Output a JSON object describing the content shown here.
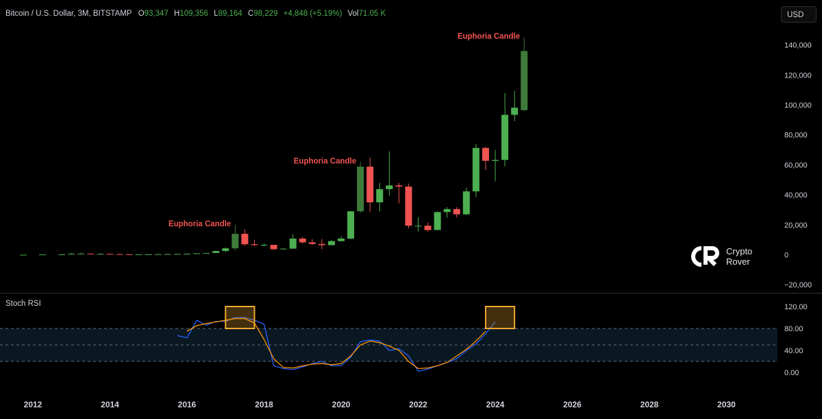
{
  "header": {
    "title": "Bitcoin / U.S. Dollar, 3M, BITSTAMP",
    "open_key": "O",
    "open_val": "93,347",
    "high_key": "H",
    "high_val": "109,356",
    "low_key": "L",
    "low_val": "89,164",
    "close_key": "C",
    "close_val": "98,229",
    "change": "+4,848 (+5.19%)",
    "vol_key": "Vol",
    "vol_val": "71.05 K"
  },
  "currency_button": "USD",
  "logo": {
    "line1": "Crypto",
    "line2": "Rover"
  },
  "colors": {
    "up": "#4caf50",
    "down": "#f05350",
    "euphoria": "#3e7a3a",
    "rsi_k": "#2962ff",
    "rsi_d": "#ff9800",
    "highlight": "#f0a830"
  },
  "chart_data": [
    {
      "type": "candlestick",
      "title": "Bitcoin / U.S. Dollar, 3M, BITSTAMP",
      "ylim": [
        -20000,
        145000
      ],
      "yticks": [
        -20000,
        0,
        20000,
        40000,
        60000,
        80000,
        100000,
        120000,
        140000
      ],
      "ytick_labels": [
        "−20,000",
        "0",
        "20,000",
        "40,000",
        "60,000",
        "80,000",
        "100,000",
        "120,000",
        "140,000"
      ],
      "x_ticks": [
        "2012",
        "2014",
        "2016",
        "2018",
        "2020",
        "2022",
        "2024",
        "2026",
        "2028",
        "2030"
      ],
      "candles": [
        {
          "t": 2011.75,
          "o": 0,
          "h": 10,
          "l": 0,
          "c": 10
        },
        {
          "t": 2012.25,
          "o": 100,
          "h": 250,
          "l": 50,
          "c": 200
        },
        {
          "t": 2012.75,
          "o": 200,
          "h": 400,
          "l": 150,
          "c": 300
        },
        {
          "t": 2013.0,
          "o": 300,
          "h": 1100,
          "l": 250,
          "c": 700
        },
        {
          "t": 2013.25,
          "o": 700,
          "h": 1200,
          "l": 500,
          "c": 800
        },
        {
          "t": 2013.5,
          "o": 800,
          "h": 900,
          "l": 400,
          "c": 500
        },
        {
          "t": 2013.75,
          "o": 500,
          "h": 1000,
          "l": 300,
          "c": 600
        },
        {
          "t": 2014.0,
          "o": 600,
          "h": 700,
          "l": 300,
          "c": 400
        },
        {
          "t": 2014.25,
          "o": 400,
          "h": 500,
          "l": 200,
          "c": 300
        },
        {
          "t": 2014.5,
          "o": 300,
          "h": 400,
          "l": 200,
          "c": 250
        },
        {
          "t": 2014.75,
          "o": 250,
          "h": 350,
          "l": 200,
          "c": 300
        },
        {
          "t": 2015.0,
          "o": 300,
          "h": 400,
          "l": 250,
          "c": 350
        },
        {
          "t": 2015.25,
          "o": 350,
          "h": 450,
          "l": 300,
          "c": 400
        },
        {
          "t": 2015.5,
          "o": 400,
          "h": 500,
          "l": 350,
          "c": 450
        },
        {
          "t": 2015.75,
          "o": 450,
          "h": 600,
          "l": 400,
          "c": 550
        },
        {
          "t": 2016.0,
          "o": 550,
          "h": 800,
          "l": 500,
          "c": 700
        },
        {
          "t": 2016.25,
          "o": 700,
          "h": 1000,
          "l": 600,
          "c": 950
        },
        {
          "t": 2016.5,
          "o": 950,
          "h": 1300,
          "l": 900,
          "c": 1200
        },
        {
          "t": 2016.75,
          "o": 1200,
          "h": 2700,
          "l": 1100,
          "c": 2500
        },
        {
          "t": 2017.0,
          "o": 2500,
          "h": 5000,
          "l": 1800,
          "c": 4300
        },
        {
          "t": 2017.25,
          "o": 4300,
          "h": 20000,
          "l": 3000,
          "c": 14000,
          "euphoria": true
        },
        {
          "t": 2017.5,
          "o": 14000,
          "h": 17000,
          "l": 6000,
          "c": 7000
        },
        {
          "t": 2017.75,
          "o": 7000,
          "h": 9900,
          "l": 5800,
          "c": 6400
        },
        {
          "t": 2018.0,
          "o": 6400,
          "h": 7500,
          "l": 5800,
          "c": 6600
        },
        {
          "t": 2018.25,
          "o": 6600,
          "h": 6700,
          "l": 3200,
          "c": 3700
        },
        {
          "t": 2018.5,
          "o": 3700,
          "h": 4100,
          "l": 3300,
          "c": 4100
        },
        {
          "t": 2018.75,
          "o": 4100,
          "h": 13800,
          "l": 4000,
          "c": 10800
        },
        {
          "t": 2019.0,
          "o": 10800,
          "h": 12000,
          "l": 7500,
          "c": 8300
        },
        {
          "t": 2019.25,
          "o": 8300,
          "h": 10500,
          "l": 6500,
          "c": 7200
        },
        {
          "t": 2019.5,
          "o": 7200,
          "h": 10500,
          "l": 3800,
          "c": 6400
        },
        {
          "t": 2019.75,
          "o": 6400,
          "h": 10000,
          "l": 6300,
          "c": 9100
        },
        {
          "t": 2020.0,
          "o": 9100,
          "h": 12400,
          "l": 8900,
          "c": 10800
        },
        {
          "t": 2020.25,
          "o": 10800,
          "h": 29000,
          "l": 10300,
          "c": 29000
        },
        {
          "t": 2020.5,
          "o": 29000,
          "h": 61800,
          "l": 28000,
          "c": 58800,
          "euphoria": true
        },
        {
          "t": 2020.75,
          "o": 58800,
          "h": 65000,
          "l": 28800,
          "c": 35000
        },
        {
          "t": 2021.0,
          "o": 35000,
          "h": 48000,
          "l": 29000,
          "c": 43800
        },
        {
          "t": 2021.25,
          "o": 43800,
          "h": 69000,
          "l": 39600,
          "c": 46300
        },
        {
          "t": 2021.5,
          "o": 46300,
          "h": 48000,
          "l": 34300,
          "c": 45500
        },
        {
          "t": 2021.75,
          "o": 45500,
          "h": 47500,
          "l": 17600,
          "c": 19400
        },
        {
          "t": 2022.0,
          "o": 19400,
          "h": 25000,
          "l": 15500,
          "c": 19400
        },
        {
          "t": 2022.25,
          "o": 19400,
          "h": 21500,
          "l": 15500,
          "c": 16500
        },
        {
          "t": 2022.5,
          "o": 16500,
          "h": 29000,
          "l": 16500,
          "c": 28500
        },
        {
          "t": 2022.75,
          "o": 28500,
          "h": 31800,
          "l": 24800,
          "c": 30500
        },
        {
          "t": 2023.0,
          "o": 30500,
          "h": 31800,
          "l": 24900,
          "c": 27000
        },
        {
          "t": 2023.25,
          "o": 27000,
          "h": 44700,
          "l": 26500,
          "c": 42300
        },
        {
          "t": 2023.5,
          "o": 42300,
          "h": 73800,
          "l": 38500,
          "c": 71300
        },
        {
          "t": 2023.75,
          "o": 71300,
          "h": 72000,
          "l": 56500,
          "c": 62700
        },
        {
          "t": 2024.0,
          "o": 62700,
          "h": 70000,
          "l": 49000,
          "c": 63300
        },
        {
          "t": 2024.25,
          "o": 63300,
          "h": 108000,
          "l": 58900,
          "c": 93400
        },
        {
          "t": 2024.5,
          "o": 93400,
          "h": 109400,
          "l": 89200,
          "c": 98200
        },
        {
          "t": 2024.75,
          "o": 96500,
          "h": 145000,
          "l": 96000,
          "c": 136000,
          "euphoria": true
        }
      ],
      "annotations": [
        {
          "text": "Euphoria Candle",
          "t": 2017.25,
          "y": 20000
        },
        {
          "text": "Euphoria Candle",
          "t": 2020.5,
          "y": 61800
        },
        {
          "text": "Euphoria Candle",
          "t": 2024.75,
          "y": 145000
        }
      ]
    },
    {
      "type": "line",
      "title": "Stoch RSI",
      "ylim": [
        -10,
        125
      ],
      "yticks": [
        0,
        40,
        80,
        120
      ],
      "ytick_labels": [
        "0.00",
        "40.00",
        "80.00",
        "120.00"
      ],
      "band": [
        20,
        80
      ],
      "mid_line": 50,
      "series": [
        {
          "color": "#2962ff",
          "points": [
            [
              2015.75,
              67
            ],
            [
              2016.0,
              63
            ],
            [
              2016.25,
              95
            ],
            [
              2016.5,
              86
            ],
            [
              2016.75,
              93
            ],
            [
              2017.0,
              93
            ],
            [
              2017.25,
              100
            ],
            [
              2017.5,
              100
            ],
            [
              2017.75,
              95
            ],
            [
              2018.0,
              88
            ],
            [
              2018.25,
              12
            ],
            [
              2018.5,
              7
            ],
            [
              2018.75,
              5
            ],
            [
              2019.0,
              10
            ],
            [
              2019.25,
              16
            ],
            [
              2019.5,
              20
            ],
            [
              2019.75,
              12
            ],
            [
              2020.0,
              12
            ],
            [
              2020.25,
              28
            ],
            [
              2020.5,
              56
            ],
            [
              2020.75,
              59
            ],
            [
              2021.0,
              57
            ],
            [
              2021.25,
              40
            ],
            [
              2021.5,
              43
            ],
            [
              2021.75,
              30
            ],
            [
              2022.0,
              2
            ],
            [
              2022.25,
              6
            ],
            [
              2022.5,
              12
            ],
            [
              2022.75,
              18
            ],
            [
              2023.0,
              25
            ],
            [
              2023.25,
              40
            ],
            [
              2023.5,
              52
            ],
            [
              2023.75,
              70
            ],
            [
              2024.0,
              92
            ]
          ]
        },
        {
          "color": "#ff9800",
          "points": [
            [
              2016.0,
              75
            ],
            [
              2016.25,
              85
            ],
            [
              2016.5,
              89
            ],
            [
              2016.75,
              92
            ],
            [
              2017.0,
              95
            ],
            [
              2017.25,
              98
            ],
            [
              2017.5,
              98
            ],
            [
              2017.75,
              90
            ],
            [
              2018.0,
              60
            ],
            [
              2018.25,
              25
            ],
            [
              2018.5,
              9
            ],
            [
              2018.75,
              8
            ],
            [
              2019.0,
              12
            ],
            [
              2019.25,
              15
            ],
            [
              2019.5,
              16
            ],
            [
              2019.75,
              14
            ],
            [
              2020.0,
              16
            ],
            [
              2020.25,
              30
            ],
            [
              2020.5,
              50
            ],
            [
              2020.75,
              57
            ],
            [
              2021.0,
              54
            ],
            [
              2021.25,
              48
            ],
            [
              2021.5,
              40
            ],
            [
              2021.75,
              20
            ],
            [
              2022.0,
              7
            ],
            [
              2022.25,
              8
            ],
            [
              2022.5,
              12
            ],
            [
              2022.75,
              18
            ],
            [
              2023.0,
              30
            ],
            [
              2023.25,
              42
            ],
            [
              2023.5,
              57
            ],
            [
              2023.75,
              75
            ]
          ]
        }
      ],
      "highlights": [
        {
          "t_start": 2017.0,
          "t_end": 2017.75,
          "y_start": 80,
          "y_end": 120
        },
        {
          "t_start": 2023.75,
          "t_end": 2024.5,
          "y_start": 80,
          "y_end": 120
        }
      ]
    }
  ]
}
